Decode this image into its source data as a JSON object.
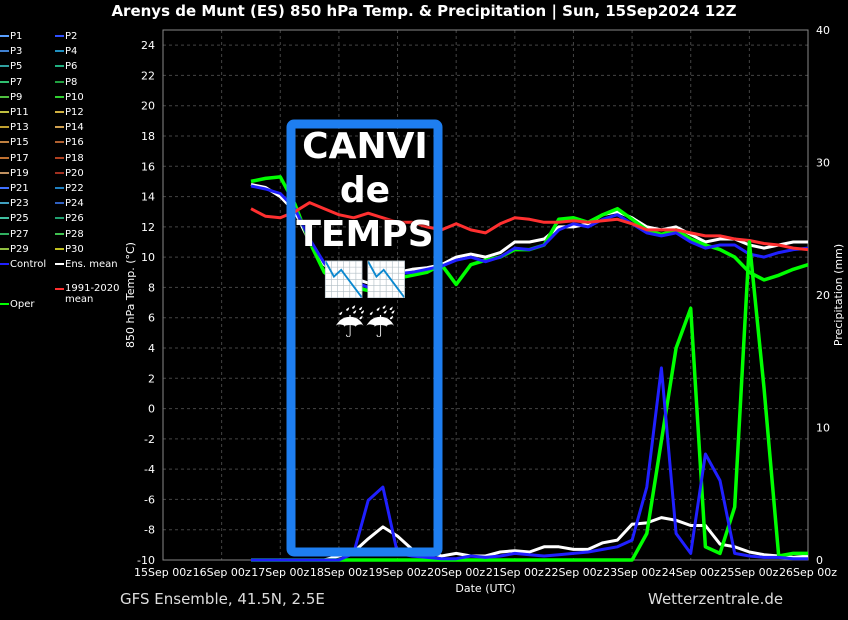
{
  "title": "Arenys de Munt  (ES)  850 hPa Temp. & Precipitation | Sun, 15Sep2024 12Z",
  "footer_left": "GFS Ensemble, 41.5N, 2.5E",
  "footer_right": "Wetterzentrale.de",
  "overlay": {
    "line1": "CANVI",
    "line2": "de",
    "line3": "TEMPS",
    "emoji1": "📉📉",
    "emoji2": "☔☔",
    "box_color": "#1e7ef0"
  },
  "legend": [
    {
      "label": "P1",
      "color": "#5aa0ff"
    },
    {
      "label": "P2",
      "color": "#3050ff"
    },
    {
      "label": "P3",
      "color": "#4080d0"
    },
    {
      "label": "P4",
      "color": "#2090c0"
    },
    {
      "label": "P5",
      "color": "#30a0a0"
    },
    {
      "label": "P6",
      "color": "#20b080"
    },
    {
      "label": "P7",
      "color": "#30c070"
    },
    {
      "label": "P8",
      "color": "#20a040"
    },
    {
      "label": "P9",
      "color": "#50c040"
    },
    {
      "label": "P10",
      "color": "#30d030"
    },
    {
      "label": "P11",
      "color": "#c0c040"
    },
    {
      "label": "P12",
      "color": "#d0b040"
    },
    {
      "label": "P13",
      "color": "#c0a030"
    },
    {
      "label": "P14",
      "color": "#d0a050"
    },
    {
      "label": "P15",
      "color": "#c08040"
    },
    {
      "label": "P16",
      "color": "#b06030"
    },
    {
      "label": "P17",
      "color": "#c07030"
    },
    {
      "label": "P18",
      "color": "#b04020"
    },
    {
      "label": "P19",
      "color": "#c09060"
    },
    {
      "label": "P20",
      "color": "#a03020"
    },
    {
      "label": "P21",
      "color": "#4070ff"
    },
    {
      "label": "P22",
      "color": "#2080c0"
    },
    {
      "label": "P23",
      "color": "#40a0c0"
    },
    {
      "label": "P24",
      "color": "#3060c0"
    },
    {
      "label": "P25",
      "color": "#40c0a0"
    },
    {
      "label": "P26",
      "color": "#20a070"
    },
    {
      "label": "P27",
      "color": "#30b060"
    },
    {
      "label": "P28",
      "color": "#40c050"
    },
    {
      "label": "P29",
      "color": "#90c040"
    },
    {
      "label": "P30",
      "color": "#c0c020"
    },
    {
      "label": "Control",
      "color": "#2020ff"
    },
    {
      "label": "Ens. mean",
      "color": "#ffffff"
    },
    {
      "label": "Oper",
      "color": "#00ff00"
    },
    {
      "label": "1991-2020 mean",
      "color": "#ff3030"
    }
  ],
  "chart_data": {
    "type": "line",
    "title": "Arenys de Munt  (ES)  850 hPa Temp. & Precipitation | Sun, 15Sep2024 12Z",
    "xlabel": "Date (UTC)",
    "ylabel": "850 hPa Temp. (°C)",
    "y2label": "Precipitation (mm)",
    "x_ticks": [
      "15Sep 00z",
      "16Sep 00z",
      "17Sep 00z",
      "18Sep 00z",
      "19Sep 00z",
      "20Sep 00z",
      "21Sep 00z",
      "22Sep 00z",
      "23Sep 00z",
      "24Sep 00z",
      "25Sep 00z",
      "26Sep 00z"
    ],
    "xlim": [
      0,
      11
    ],
    "ylim": [
      -10,
      25
    ],
    "y_ticks": [
      -10,
      -8,
      -6,
      -4,
      -2,
      0,
      2,
      4,
      6,
      8,
      10,
      12,
      14,
      16,
      18,
      20,
      22,
      24
    ],
    "y2lim": [
      0,
      40
    ],
    "y2_ticks": [
      0,
      10,
      20,
      30,
      40
    ],
    "grid": true,
    "x": [
      1.5,
      1.75,
      2,
      2.25,
      2.5,
      2.75,
      3,
      3.25,
      3.5,
      3.75,
      4,
      4.25,
      4.5,
      4.75,
      5,
      5.25,
      5.5,
      5.75,
      6,
      6.25,
      6.5,
      6.75,
      7,
      7.25,
      7.5,
      7.75,
      8,
      8.25,
      8.5,
      8.75,
      9,
      9.25,
      9.5,
      9.75,
      10,
      10.25,
      10.5,
      10.75,
      11
    ],
    "series": [
      {
        "name": "Ens. mean",
        "axis": "temp",
        "color": "#ffffff",
        "values": [
          14.8,
          14.6,
          14.0,
          13.0,
          11.0,
          9.5,
          8.8,
          8.6,
          8.3,
          8.5,
          9.0,
          9.2,
          9.3,
          9.5,
          10.0,
          10.2,
          10.0,
          10.3,
          11.0,
          11.0,
          11.2,
          12.0,
          12.0,
          12.2,
          12.8,
          13.0,
          12.6,
          12.0,
          11.8,
          12.0,
          11.5,
          11.0,
          11.2,
          11.2,
          10.8,
          10.6,
          10.8,
          11.0,
          11.0
        ]
      },
      {
        "name": "Oper",
        "axis": "temp",
        "color": "#00ff00",
        "values": [
          15.0,
          15.2,
          15.3,
          13.5,
          11.0,
          9.0,
          8.2,
          8.0,
          7.8,
          8.2,
          8.6,
          8.8,
          9.0,
          9.5,
          8.2,
          9.5,
          9.8,
          10.0,
          10.5,
          10.5,
          10.8,
          12.5,
          12.6,
          12.3,
          12.8,
          13.2,
          12.5,
          11.8,
          11.5,
          11.8,
          11.2,
          10.8,
          10.5,
          10.0,
          9.0,
          8.5,
          8.8,
          9.2,
          9.5
        ]
      },
      {
        "name": "Control",
        "axis": "temp",
        "color": "#2020ff",
        "values": [
          14.7,
          14.5,
          14.2,
          13.2,
          11.2,
          9.6,
          8.6,
          8.4,
          8.0,
          8.3,
          8.9,
          9.0,
          9.2,
          9.4,
          9.8,
          10.0,
          9.7,
          10.0,
          10.6,
          10.5,
          10.8,
          11.8,
          12.2,
          12.0,
          12.5,
          12.8,
          12.2,
          11.6,
          11.4,
          11.6,
          11.0,
          10.6,
          10.8,
          10.8,
          10.2,
          10.0,
          10.3,
          10.5,
          10.6
        ]
      },
      {
        "name": "1991-2020 mean",
        "axis": "temp",
        "color": "#ff3030",
        "values": [
          13.2,
          12.7,
          12.6,
          13.0,
          13.6,
          13.2,
          12.8,
          12.6,
          12.9,
          12.6,
          12.3,
          12.3,
          12.0,
          11.8,
          12.2,
          11.8,
          11.6,
          12.2,
          12.6,
          12.5,
          12.3,
          12.3,
          12.4,
          12.3,
          12.4,
          12.5,
          12.2,
          11.8,
          11.8,
          11.8,
          11.6,
          11.4,
          11.4,
          11.2,
          11.1,
          10.9,
          10.8,
          10.6,
          10.5
        ]
      },
      {
        "name": "Ens. mean precipitation",
        "axis": "precip",
        "color": "#ffffff",
        "values": [
          0,
          0,
          0,
          0,
          0,
          0,
          0.3,
          0.6,
          1.6,
          2.5,
          1.8,
          0.8,
          0.6,
          0.3,
          0.5,
          0.3,
          0.3,
          0.6,
          0.7,
          0.6,
          1.0,
          1.0,
          0.8,
          0.8,
          1.3,
          1.5,
          2.7,
          2.8,
          3.2,
          3.0,
          2.6,
          2.6,
          1.2,
          1.0,
          0.6,
          0.4,
          0.3,
          0.2,
          0.3
        ]
      },
      {
        "name": "Oper precipitation",
        "axis": "precip",
        "color": "#00ff00",
        "values": [
          0,
          0,
          0,
          0,
          0,
          0,
          0,
          0,
          0,
          0,
          0,
          0,
          0,
          0,
          0,
          0,
          0,
          0,
          0,
          0,
          0,
          0,
          0,
          0,
          0,
          0,
          0,
          2.0,
          9.0,
          16.0,
          19.0,
          1.0,
          0.5,
          4.0,
          24.0,
          13.0,
          0.3,
          0.5,
          0.5
        ]
      },
      {
        "name": "Control precipitation",
        "axis": "precip",
        "color": "#2020ff",
        "values": [
          0,
          0,
          0,
          0,
          0,
          0,
          0,
          0.5,
          4.5,
          5.5,
          0.5,
          0.3,
          0.2,
          0.1,
          0.1,
          0.3,
          0.2,
          0.3,
          0.5,
          0.4,
          0.3,
          0.4,
          0.5,
          0.6,
          0.8,
          1.0,
          1.5,
          5.5,
          14.5,
          2.0,
          0.5,
          8.0,
          6.0,
          0.5,
          0.3,
          0.2,
          0.2,
          0.1,
          0.1
        ]
      }
    ]
  }
}
